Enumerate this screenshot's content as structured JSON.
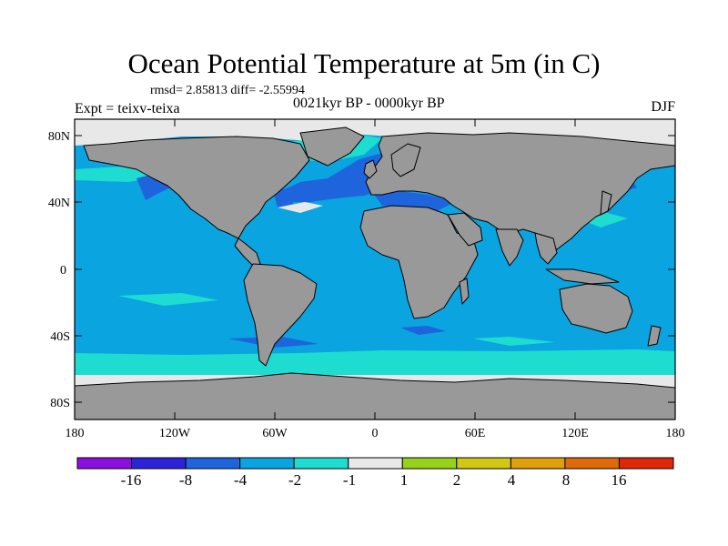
{
  "title": "Ocean Potential Temperature at 5m (in C)",
  "stats": "rmsd= 2.85813 diff= -2.55994",
  "experiment": "Expt = teixv-teixa",
  "period": "0021kyr BP - 0000kyr BP",
  "season": "DJF",
  "lat_ticks": [
    "80N",
    "40N",
    "0",
    "40S",
    "80S"
  ],
  "lon_ticks": [
    "180",
    "120W",
    "60W",
    "0",
    "60E",
    "120E",
    "180"
  ],
  "colorbar": {
    "labels": [
      "-16",
      "-8",
      "-4",
      "-2",
      "-1",
      "1",
      "2",
      "4",
      "8",
      "16"
    ],
    "colors": [
      "#8a10e0",
      "#2c24d8",
      "#1e64dc",
      "#0aa4e0",
      "#1edcd0",
      "#e8e8e8",
      "#96d21a",
      "#d2c814",
      "#e0a00c",
      "#e06a0a",
      "#e02808"
    ]
  },
  "colors": {
    "land": "#999999",
    "ocean_dominant": "#0aa4e0",
    "coastline": "#000000"
  }
}
